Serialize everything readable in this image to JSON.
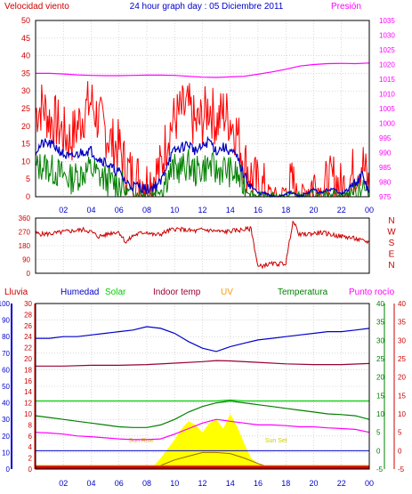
{
  "title": "24 hour graph day : 05 Diciembre 2011",
  "colors": {
    "wind": "#ff0000",
    "wind_avg": "#0000c0",
    "wind_green": "#008000",
    "pressure": "#ff00ff",
    "direction": "#cc0000",
    "humidity": "#0000cc",
    "solar": "#00cc00",
    "indoor": "#990033",
    "uv": "#ff9900",
    "temperature": "#008000",
    "dewpoint": "#ff00ff",
    "rain": "#cc0000",
    "axis_red": "#cc0000",
    "axis_blue": "#0000cc",
    "axis_green": "#008000",
    "axis_purple": "#cc00cc",
    "grid": "#c0c0c0",
    "solar_fill": "#ffff00"
  },
  "chart_data": [
    {
      "type": "line",
      "title": "24 hour graph day : 05 Diciembre 2011",
      "left_label": "Velocidad viento",
      "right_label": "Presión",
      "left_ticks": [
        "0",
        "5",
        "10",
        "15",
        "20",
        "25",
        "30",
        "35",
        "40",
        "45",
        "50"
      ],
      "right_ticks": [
        "975",
        "980",
        "985",
        "990",
        "995",
        "1000",
        "1005",
        "1010",
        "1015",
        "1020",
        "1025",
        "1030",
        "1035"
      ],
      "ylim_left": [
        0,
        50
      ],
      "ylim_right": [
        975,
        1035
      ],
      "x_ticks": [
        "02",
        "04",
        "06",
        "08",
        "10",
        "12",
        "14",
        "16",
        "18",
        "20",
        "22",
        "00"
      ],
      "xlim_hours": [
        0,
        24
      ],
      "grid": true,
      "series": [
        {
          "key": "wind_gust",
          "x": [
            0,
            0.5,
            1,
            1.5,
            2,
            2.5,
            3,
            3.5,
            4,
            4.5,
            5,
            5.5,
            6,
            6.5,
            7,
            7.5,
            8,
            8.5,
            9,
            9.5,
            10,
            10.5,
            11,
            11.5,
            12,
            12.5,
            13,
            13.5,
            14,
            14.5,
            15,
            15.5,
            16,
            16.5,
            17,
            17.5,
            18,
            18.5,
            19,
            19.5,
            20,
            20.5,
            21,
            21.5,
            22,
            22.5,
            23,
            23.5,
            24
          ],
          "y": [
            24,
            26,
            22,
            21,
            18,
            16,
            20,
            24,
            27,
            22,
            19,
            15,
            14,
            8,
            6,
            5,
            4,
            6,
            8,
            18,
            22,
            24,
            25,
            20,
            22,
            26,
            21,
            24,
            22,
            18,
            10,
            6,
            3,
            2,
            1,
            0,
            2,
            3,
            1,
            2,
            4,
            2,
            3,
            5,
            2,
            4,
            8,
            10,
            2
          ]
        },
        {
          "key": "wind_avg",
          "x": [
            0,
            0.5,
            1,
            1.5,
            2,
            2.5,
            3,
            3.5,
            4,
            4.5,
            5,
            5.5,
            6,
            6.5,
            7,
            7.5,
            8,
            8.5,
            9,
            9.5,
            10,
            10.5,
            11,
            11.5,
            12,
            12.5,
            13,
            13.5,
            14,
            14.5,
            15,
            15.5,
            16,
            16.5,
            17,
            17.5,
            18,
            18.5,
            19,
            19.5,
            20,
            20.5,
            21,
            21.5,
            22,
            22.5,
            23,
            23.5,
            24
          ],
          "y": [
            13,
            15,
            15,
            14,
            12,
            11,
            12,
            13,
            13,
            11,
            10,
            8,
            7,
            4,
            3,
            3,
            2,
            3,
            4,
            10,
            13,
            14,
            15,
            13,
            14,
            16,
            13,
            14,
            13,
            11,
            6,
            3,
            1,
            1,
            0,
            0,
            1,
            1,
            0,
            1,
            2,
            1,
            2,
            2,
            1,
            2,
            4,
            6,
            1
          ]
        },
        {
          "key": "wind_low",
          "x": [
            0,
            0.5,
            1,
            1.5,
            2,
            2.5,
            3,
            3.5,
            4,
            4.5,
            5,
            5.5,
            6,
            6.5,
            7,
            7.5,
            8,
            8.5,
            9,
            9.5,
            10,
            10.5,
            11,
            11.5,
            12,
            12.5,
            13,
            13.5,
            14,
            14.5,
            15,
            15.5,
            16,
            16.5,
            17,
            17.5,
            18,
            18.5,
            19,
            19.5,
            20,
            20.5,
            21,
            21.5,
            22,
            22.5,
            23,
            23.5,
            24
          ],
          "y": [
            8,
            9,
            8,
            7,
            6,
            5,
            6,
            7,
            8,
            6,
            5,
            4,
            4,
            2,
            1,
            1,
            1,
            1,
            2,
            6,
            8,
            8,
            9,
            7,
            8,
            9,
            7,
            8,
            7,
            6,
            3,
            1,
            0,
            0,
            0,
            0,
            0,
            1,
            0,
            0,
            1,
            0,
            1,
            1,
            0,
            1,
            2,
            3,
            0
          ]
        },
        {
          "key": "pressure",
          "x": [
            0,
            1,
            2,
            3,
            4,
            5,
            6,
            7,
            8,
            9,
            10,
            11,
            12,
            13,
            14,
            15,
            16,
            17,
            18,
            19,
            20,
            21,
            22,
            23,
            24
          ],
          "y": [
            1017,
            1017,
            1016.8,
            1016.5,
            1016.3,
            1016.2,
            1016.2,
            1016.3,
            1016.4,
            1016.4,
            1016.3,
            1016,
            1015.7,
            1015.6,
            1015.8,
            1016,
            1016.7,
            1017.5,
            1018.4,
            1019.5,
            1020,
            1020.3,
            1020.4,
            1020.3,
            1020.5
          ]
        }
      ]
    },
    {
      "type": "scatter",
      "left_ticks": [
        "0",
        "90",
        "180",
        "270",
        "360"
      ],
      "right_letters": [
        "N",
        "W",
        "S",
        "E",
        "N"
      ],
      "ylim": [
        0,
        360
      ],
      "grid": true,
      "series": [
        {
          "key": "direction",
          "x": [
            0,
            0.5,
            1,
            1.5,
            2,
            2.5,
            3,
            3.5,
            4,
            4.5,
            5,
            5.5,
            6,
            6.5,
            7,
            7.5,
            8,
            8.5,
            9,
            9.5,
            10,
            10.5,
            11,
            11.5,
            12,
            12.5,
            13,
            13.5,
            14,
            14.5,
            15,
            15.5,
            16,
            16.5,
            17,
            17.5,
            18,
            18.5,
            19,
            19.5,
            20,
            20.5,
            21,
            21.5,
            22,
            22.5,
            23,
            23.5,
            24
          ],
          "y": [
            260,
            255,
            258,
            262,
            270,
            275,
            280,
            285,
            270,
            240,
            250,
            265,
            270,
            200,
            245,
            260,
            270,
            250,
            255,
            275,
            290,
            285,
            280,
            275,
            285,
            280,
            275,
            270,
            275,
            280,
            285,
            290,
            40,
            55,
            60,
            62,
            65,
            340,
            250,
            255,
            260,
            265,
            258,
            248,
            240,
            235,
            225,
            210,
            205
          ]
        }
      ]
    },
    {
      "type": "area",
      "top_labels": [
        "Lluvia",
        "Humedad",
        "Solar",
        "Indoor temp",
        "UV",
        "Temperatura",
        "Punto rocío"
      ],
      "axis1_ticks": [
        "0",
        "10",
        "20",
        "30",
        "40",
        "50",
        "60",
        "70",
        "80",
        "90",
        "100"
      ],
      "axis2_ticks": [
        "0",
        "2",
        "4",
        "6",
        "8",
        "10",
        "12",
        "14",
        "16",
        "18",
        "20",
        "22",
        "24",
        "26",
        "28",
        "30"
      ],
      "axis3_ticks": [
        "-5",
        "0",
        "5",
        "10",
        "15",
        "20",
        "25",
        "30",
        "35",
        "40"
      ],
      "axis4_ticks": [
        "-5",
        "0",
        "5",
        "10",
        "15",
        "20",
        "25",
        "30",
        "35",
        "40"
      ],
      "ylim_humidity": [
        0,
        100
      ],
      "ylim_temp": [
        -5,
        40
      ],
      "x_ticks": [
        "02",
        "04",
        "06",
        "08",
        "10",
        "12",
        "14",
        "16",
        "18",
        "20",
        "22",
        "00"
      ],
      "solar_marks": [
        "Sun Rise",
        "Sun Set"
      ],
      "series": [
        {
          "key": "humidity",
          "x": [
            0,
            1,
            2,
            3,
            4,
            5,
            6,
            7,
            8,
            9,
            10,
            11,
            12,
            13,
            14,
            15,
            16,
            17,
            18,
            19,
            20,
            21,
            22,
            23,
            24
          ],
          "y": [
            79,
            79,
            80,
            80,
            81,
            82,
            83,
            84,
            86,
            85,
            82,
            77,
            73,
            71,
            74,
            76,
            78,
            79,
            80,
            81,
            82,
            83,
            83,
            84,
            85
          ]
        },
        {
          "key": "indoor",
          "x": [
            0,
            2,
            4,
            6,
            8,
            10,
            12,
            13,
            14,
            16,
            18,
            20,
            22,
            24
          ],
          "y": [
            23,
            23,
            23.2,
            23.2,
            23.4,
            23.8,
            24.2,
            24.5,
            24.4,
            24,
            23.6,
            23.4,
            23.4,
            23.7
          ]
        },
        {
          "key": "solar_line",
          "x": [
            0,
            6,
            8,
            9,
            10,
            11,
            12,
            13,
            14,
            15,
            16,
            18,
            20,
            24
          ],
          "y": [
            13.5,
            13.5,
            13.5,
            13.5,
            13.5,
            13.5,
            13.5,
            13.5,
            13.8,
            13.5,
            13.5,
            13.5,
            13.5,
            13.5
          ]
        },
        {
          "key": "temperature",
          "x": [
            0,
            1,
            2,
            3,
            4,
            5,
            6,
            7,
            8,
            9,
            10,
            11,
            12,
            13,
            14,
            15,
            16,
            17,
            18,
            19,
            20,
            21,
            22,
            23,
            24
          ],
          "y": [
            9.5,
            9,
            8.5,
            8,
            7.5,
            7,
            6.5,
            6.3,
            6.3,
            7,
            8.5,
            10.5,
            12,
            13,
            13.5,
            13,
            12.5,
            12,
            11.5,
            11,
            10.5,
            10,
            9.8,
            9.5,
            8.5
          ]
        },
        {
          "key": "dewpoint",
          "x": [
            0,
            1,
            2,
            3,
            4,
            5,
            6,
            7,
            8,
            9,
            10,
            11,
            12,
            13,
            14,
            15,
            16,
            17,
            18,
            19,
            20,
            21,
            22,
            23,
            24
          ],
          "y": [
            5,
            4.8,
            4.5,
            4,
            3.8,
            3.5,
            3.2,
            3,
            3,
            3.2,
            4.5,
            6,
            7.5,
            8.5,
            8,
            7.5,
            7,
            7,
            6.8,
            6.5,
            6.5,
            6.2,
            6,
            5.8,
            5
          ]
        },
        {
          "key": "uv",
          "x": [
            0,
            8.3,
            9,
            10,
            11,
            12,
            13,
            14,
            15,
            16,
            17.3,
            24
          ],
          "y": [
            -5,
            -5,
            -4,
            -2.5,
            -1.5,
            -0.5,
            -0.5,
            -0.8,
            -2,
            -3.5,
            -5,
            -5
          ]
        },
        {
          "key": "solar_area",
          "x": [
            8.3,
            9,
            9.5,
            10,
            10.5,
            11,
            11.5,
            12,
            12.5,
            13,
            13.5,
            14,
            14.5,
            15,
            15.5,
            16,
            16.5,
            17,
            17.3
          ],
          "y": [
            -5,
            -2,
            0.5,
            3,
            6,
            8,
            7,
            5,
            7.5,
            8.5,
            6,
            10,
            6.5,
            2,
            -2,
            -3.5,
            -4,
            -4.5,
            -5
          ]
        },
        {
          "key": "rain",
          "x": [
            0,
            24
          ],
          "y": [
            0,
            0
          ]
        }
      ]
    }
  ]
}
